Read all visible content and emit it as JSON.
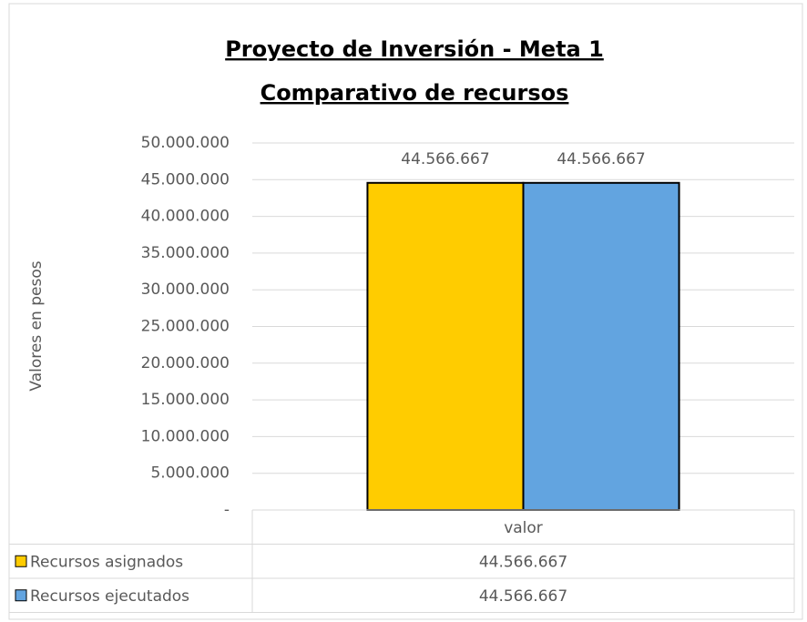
{
  "chart_data": {
    "type": "bar",
    "title": "Proyecto de Inversión - Meta 1",
    "subtitle": "Comparativo de recursos",
    "y_label": "Valores en pesos",
    "categories": [
      "valor"
    ],
    "series": [
      {
        "name": "Recursos asignados",
        "color": "#ffcc00",
        "values": [
          44566667
        ],
        "value_labels": [
          "44.566.667"
        ]
      },
      {
        "name": "Recursos ejecutados",
        "color": "#62a4e0",
        "values": [
          44566667
        ],
        "value_labels": [
          "44.566.667"
        ]
      }
    ],
    "ylim": [
      0,
      50000000
    ],
    "yticks": [
      {
        "value": 0,
        "label": "-"
      },
      {
        "value": 5000000,
        "label": "5.000.000"
      },
      {
        "value": 10000000,
        "label": "10.000.000"
      },
      {
        "value": 15000000,
        "label": "15.000.000"
      },
      {
        "value": 20000000,
        "label": "20.000.000"
      },
      {
        "value": 25000000,
        "label": "25.000.000"
      },
      {
        "value": 30000000,
        "label": "30.000.000"
      },
      {
        "value": 35000000,
        "label": "35.000.000"
      },
      {
        "value": 40000000,
        "label": "40.000.000"
      },
      {
        "value": 45000000,
        "label": "45.000.000"
      },
      {
        "value": 50000000,
        "label": "50.000.000"
      }
    ],
    "grid": true
  }
}
